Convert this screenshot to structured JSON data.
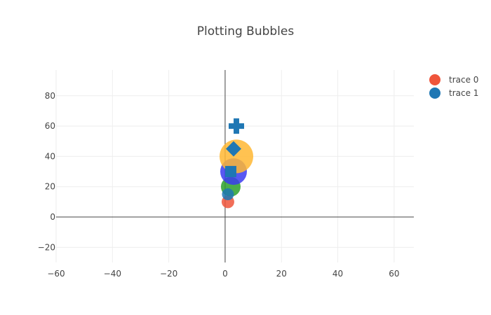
{
  "chart_data": {
    "type": "scatter",
    "title": "Plotting Bubbles",
    "xlabel": "",
    "ylabel": "",
    "xlim": [
      -60,
      67
    ],
    "ylim": [
      -30,
      97
    ],
    "x_ticks": [
      -60,
      -40,
      -20,
      0,
      20,
      40,
      60
    ],
    "x_tick_labels": [
      "−60",
      "−40",
      "−20",
      "0",
      "20",
      "40",
      "60"
    ],
    "y_ticks": [
      -20,
      0,
      20,
      40,
      60,
      80
    ],
    "y_tick_labels": [
      "−20",
      "0",
      "20",
      "40",
      "60",
      "80"
    ],
    "grid": true,
    "zero_lines": true,
    "legend": "top-right",
    "series": [
      {
        "name": "trace 0",
        "legend_color": "#ef553b",
        "points": [
          {
            "x": 1,
            "y": 10,
            "size": 18,
            "color": "#ef553b",
            "symbol": "circle"
          },
          {
            "x": 2,
            "y": 20,
            "size": 28,
            "color": "#2ca02c",
            "symbol": "circle"
          },
          {
            "x": 3,
            "y": 30,
            "size": 38,
            "color": "#3b3bf0",
            "symbol": "circle"
          },
          {
            "x": 4,
            "y": 40,
            "size": 48,
            "color": "#ffb732",
            "symbol": "circle"
          }
        ]
      },
      {
        "name": "trace 1",
        "legend_color": "#1f77b4",
        "points": [
          {
            "x": 1,
            "y": 15,
            "size": 17,
            "color": "#1f77b4",
            "symbol": "circle"
          },
          {
            "x": 2,
            "y": 30,
            "size": 16,
            "color": "#1f77b4",
            "symbol": "square"
          },
          {
            "x": 3,
            "y": 45,
            "size": 22,
            "color": "#1f77b4",
            "symbol": "diamond"
          },
          {
            "x": 4,
            "y": 60,
            "size": 22,
            "color": "#1f77b4",
            "symbol": "cross"
          }
        ]
      }
    ]
  }
}
